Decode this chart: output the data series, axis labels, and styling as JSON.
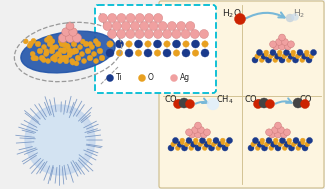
{
  "bg_color": "#f0f0f0",
  "panel_bg": "#fdf5e0",
  "dashed_box_color": "#00bcd4",
  "legend_labels": [
    "Ti",
    "O",
    "Ag"
  ],
  "legend_colors": [
    "#1a3a8c",
    "#e8a020",
    "#f0a0a0"
  ],
  "h2o_text": "H$_2$O",
  "h2_text": "H$_2$",
  "co2_text": "CO$_2$",
  "ch4_text": "CH$_4$",
  "co_text": "CO",
  "ti_color": "#1a3a8c",
  "o_color": "#e8a020",
  "ag_color": "#f0a0a0",
  "red_color": "#cc2200",
  "dark_color": "#444444",
  "arrow_color": "#78b8d8",
  "figsize": [
    3.25,
    1.89
  ],
  "dpi": 100
}
